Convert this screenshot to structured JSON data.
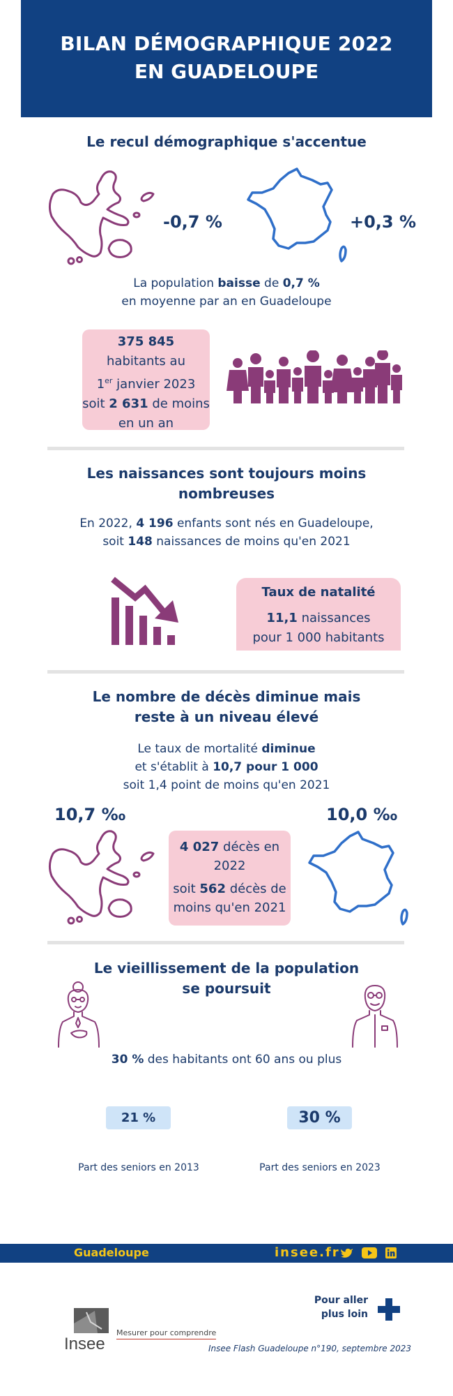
{
  "header": {
    "title_line1": "BILAN DÉMOGRAPHIQUE 2022",
    "title_line2": "EN GUADELOUPE"
  },
  "section1": {
    "title": "Le recul démographique s'accentue",
    "guadeloupe_rate": "-0,7 %",
    "france_rate": "+0,3 %",
    "text_line1_a": "La population ",
    "text_line1_b": "baisse",
    "text_line1_c": " de ",
    "text_line1_d": "0,7 %",
    "text_line2": "en moyenne par an en Guadeloupe",
    "box": {
      "population": "375 845",
      "line2": "habitants au",
      "line3_a": "1",
      "line3_sup": "er",
      "line3_b": " janvier 2023",
      "line4_a": "soit ",
      "line4_b": "2 631",
      "line4_c": " de moins",
      "line5": "en un an"
    }
  },
  "section2": {
    "title_line1": "Les naissances sont toujours moins",
    "title_line2": "nombreuses",
    "text_line1_a": "En 2022, ",
    "text_line1_b": "4 196",
    "text_line1_c": " enfants sont nés en Guadeloupe,",
    "text_line2_a": "soit ",
    "text_line2_b": "148",
    "text_line2_c": " naissances de moins qu'en 2021",
    "box": {
      "title": "Taux de natalité",
      "value": "11,1",
      "line1_rest": " naissances",
      "line2": "pour 1 000 habitants"
    }
  },
  "section3": {
    "title_line1": "Le nombre de décès diminue mais",
    "title_line2": "reste à un niveau élevé",
    "text_line1_a": "Le taux de mortalité ",
    "text_line1_b": "diminue",
    "text_line2_a": "et s'établit à ",
    "text_line2_b": "10,7 pour 1 000",
    "text_line3": "soit 1,4 point de moins qu'en 2021",
    "guadeloupe_rate": "10,7 ‰",
    "france_rate": "10,0 ‰",
    "box": {
      "deaths": "4 027",
      "line1_rest": " décès en",
      "line2": "2022",
      "line3_a": "soit ",
      "line3_b": "562",
      "line3_c": " décès de",
      "line4": "moins qu'en 2021"
    }
  },
  "section4": {
    "title_line1": "Le vieillissement de la population",
    "title_line2": "se poursuit",
    "text_a": "30 %",
    "text_b": " des habitants ont 60 ans ou plus",
    "badge_2013": "21 %",
    "badge_2023": "30 %",
    "caption_2013": "Part des seniors en 2013",
    "caption_2023": "Part des seniors en 2023"
  },
  "footer": {
    "region": "Guadeloupe",
    "site": "insee.fr",
    "more_line1": "Pour aller",
    "more_line2": "plus loin",
    "brand": "Insee",
    "tagline": "Mesurer pour comprendre",
    "reference": "Insee Flash Guadeloupe n°190, septembre 2023"
  },
  "colors": {
    "navy": "#114182",
    "magenta": "#8a3b78",
    "pink": "#f7ccd6",
    "light_blue": "#cfe4f8",
    "france_blue": "#2f6fc9",
    "yellow": "#f5c518"
  },
  "icons": [
    "guadeloupe-map-icon",
    "france-map-icon",
    "crowd-icon",
    "declining-chart-icon",
    "elderly-woman-icon",
    "elderly-man-icon",
    "twitter-icon",
    "youtube-icon",
    "linkedin-icon",
    "plus-icon",
    "insee-logo"
  ]
}
